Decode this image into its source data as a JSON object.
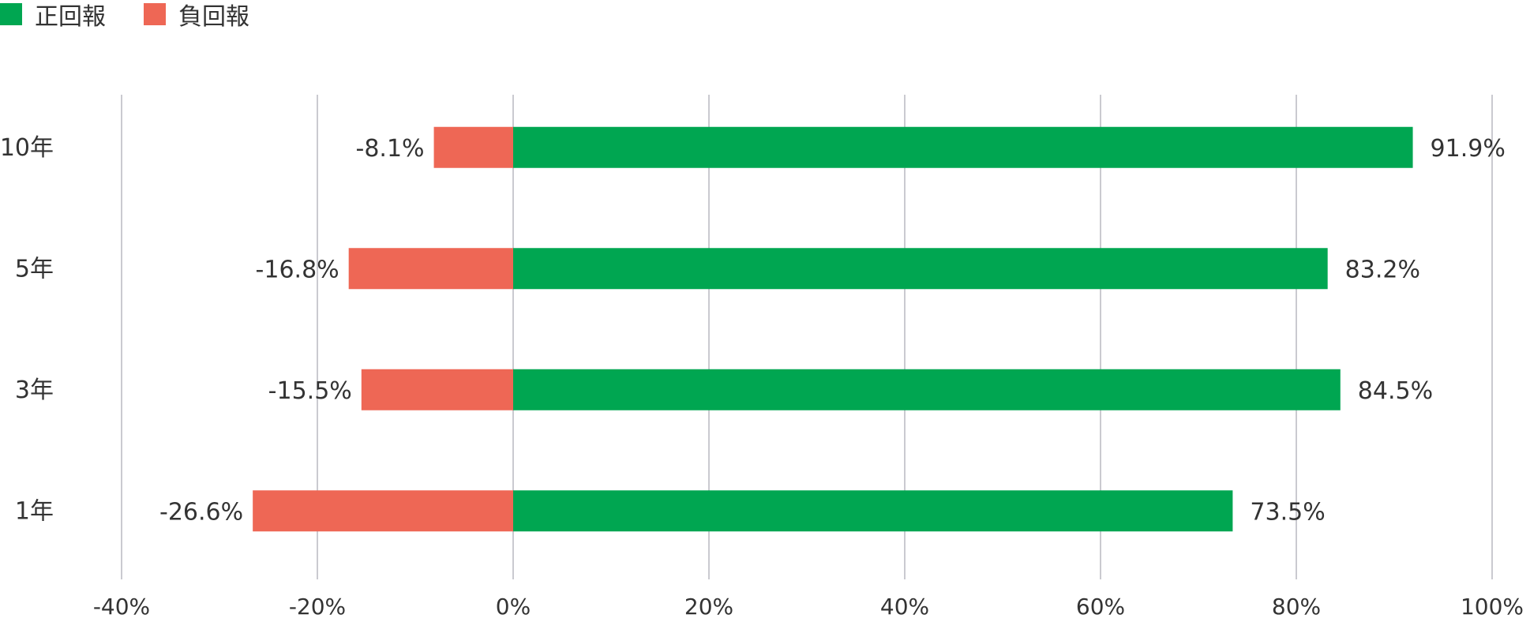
{
  "legend": {
    "positive_label": "正回報",
    "negative_label": "負回報"
  },
  "colors": {
    "positive": "#00A651",
    "negative": "#EE6755",
    "grid": "#B8B8C0"
  },
  "chart_data": {
    "type": "bar",
    "orientation": "horizontal",
    "stacked": "diverging",
    "categories": [
      "10年",
      "5年",
      "3年",
      "1年"
    ],
    "series": [
      {
        "name": "正回報",
        "values": [
          91.9,
          83.2,
          84.5,
          73.5
        ],
        "labels": [
          "91.9%",
          "83.2%",
          "84.5%",
          "73.5%"
        ]
      },
      {
        "name": "負回報",
        "values": [
          -8.1,
          -16.8,
          -15.5,
          -26.6
        ],
        "labels": [
          "-8.1%",
          "-16.8%",
          "-15.5%",
          "-26.6%"
        ]
      }
    ],
    "xlim": [
      -40,
      100
    ],
    "xticks": [
      -40,
      -20,
      0,
      20,
      40,
      60,
      80,
      100
    ],
    "xtick_labels": [
      "-40%",
      "-20%",
      "0%",
      "20%",
      "40%",
      "60%",
      "80%",
      "100%"
    ],
    "grid": "vertical",
    "legend_position": "top-left"
  }
}
